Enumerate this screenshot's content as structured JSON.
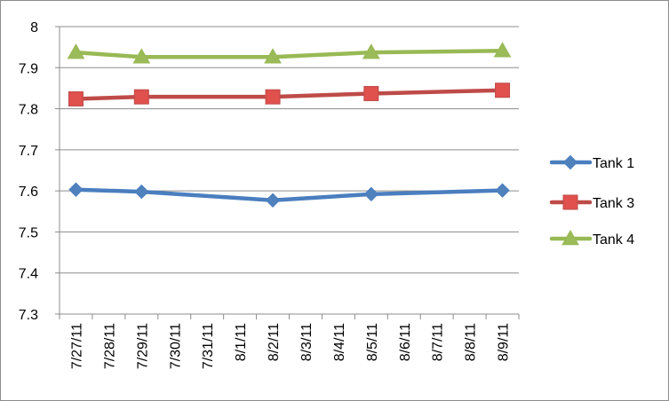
{
  "chart_data": {
    "type": "line",
    "categories": [
      "7/27/11",
      "7/28/11",
      "7/29/11",
      "7/30/11",
      "7/31/11",
      "8/1/11",
      "8/2/11",
      "8/3/11",
      "8/4/11",
      "8/5/11",
      "8/6/11",
      "8/7/11",
      "8/8/11",
      "8/9/11"
    ],
    "ylim": [
      7.3,
      8
    ],
    "yticks": [
      7.3,
      7.4,
      7.5,
      7.6,
      7.7,
      7.8,
      7.9,
      8
    ],
    "ytick_labels": [
      "7.3",
      "7.4",
      "7.5",
      "7.6",
      "7.7",
      "7.8",
      "7.9",
      "8"
    ],
    "grid": "horizontal",
    "legend_position": "right",
    "series": [
      {
        "name": "Tank 1",
        "marker": "diamond",
        "color": "#4a7ebf",
        "marker_color": "#4f81bd",
        "points": [
          {
            "x": "7/27/11",
            "y": 7.603
          },
          {
            "x": "7/29/11",
            "y": 7.598
          },
          {
            "x": "8/2/11",
            "y": 7.577
          },
          {
            "x": "8/5/11",
            "y": 7.592
          },
          {
            "x": "8/9/11",
            "y": 7.601
          }
        ]
      },
      {
        "name": "Tank 3",
        "marker": "square",
        "color": "#be4b48",
        "marker_color": "#e0504d",
        "points": [
          {
            "x": "7/27/11",
            "y": 7.824
          },
          {
            "x": "7/29/11",
            "y": 7.829
          },
          {
            "x": "8/2/11",
            "y": 7.829
          },
          {
            "x": "8/5/11",
            "y": 7.837
          },
          {
            "x": "8/9/11",
            "y": 7.845
          }
        ]
      },
      {
        "name": "Tank 4",
        "marker": "triangle",
        "color": "#98b954",
        "marker_color": "#9bbb59",
        "points": [
          {
            "x": "7/27/11",
            "y": 7.937
          },
          {
            "x": "7/29/11",
            "y": 7.926
          },
          {
            "x": "8/2/11",
            "y": 7.926
          },
          {
            "x": "8/5/11",
            "y": 7.937
          },
          {
            "x": "8/9/11",
            "y": 7.941
          }
        ]
      }
    ]
  }
}
